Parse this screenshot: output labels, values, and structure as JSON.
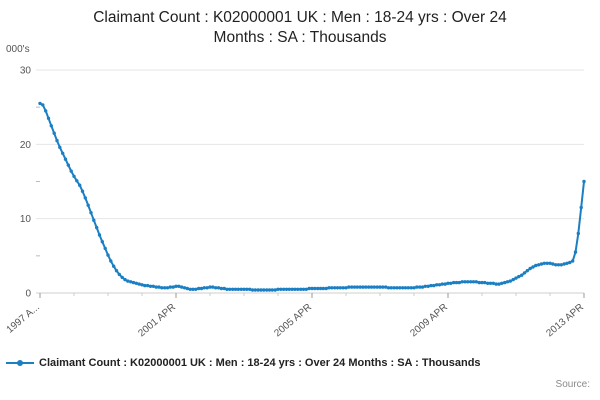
{
  "chart": {
    "title": "Claimant Count : K02000001 UK : Men : 18-24 yrs : Over 24 Months : SA : Thousands",
    "y_unit": "000's",
    "legend_label": "Claimant Count : K02000001 UK : Men : 18-24 yrs : Over 24 Months : SA : Thousands",
    "source_label": "Source:"
  },
  "chart_data": {
    "type": "line",
    "title": "Claimant Count : K02000001 UK : Men : 18-24 yrs : Over 24 Months : SA : Thousands",
    "xlabel": "",
    "ylabel": "000's",
    "ylim": [
      0,
      30
    ],
    "y_ticks": [
      0,
      10,
      20,
      30
    ],
    "y_minor_ticks": [
      5,
      15,
      25
    ],
    "grid": true,
    "legend_position": "bottom",
    "x_start": "1997-04",
    "x_freq": "monthly",
    "x_ticks": [
      {
        "index": 0,
        "label": "1997 A..."
      },
      {
        "index": 48,
        "label": "2001 APR"
      },
      {
        "index": 96,
        "label": "2005 APR"
      },
      {
        "index": 144,
        "label": "2009 APR"
      },
      {
        "index": 192,
        "label": "2013 APR"
      }
    ],
    "series": [
      {
        "name": "Claimant Count : K02000001 UK : Men : 18-24 yrs : Over 24 Months : SA : Thousands",
        "color": "#1b7fc3",
        "values": [
          25.5,
          25.3,
          24.5,
          23.5,
          22.5,
          21.5,
          20.5,
          19.6,
          18.8,
          18.0,
          17.2,
          16.4,
          15.7,
          15.1,
          14.5,
          13.7,
          12.8,
          11.8,
          10.8,
          9.8,
          8.8,
          7.8,
          6.9,
          6.0,
          5.1,
          4.3,
          3.6,
          3.0,
          2.5,
          2.1,
          1.8,
          1.6,
          1.5,
          1.4,
          1.3,
          1.2,
          1.1,
          1.0,
          1.0,
          0.9,
          0.9,
          0.8,
          0.8,
          0.7,
          0.7,
          0.7,
          0.8,
          0.8,
          0.9,
          0.9,
          0.8,
          0.7,
          0.6,
          0.5,
          0.5,
          0.5,
          0.6,
          0.6,
          0.7,
          0.7,
          0.8,
          0.8,
          0.7,
          0.7,
          0.6,
          0.6,
          0.5,
          0.5,
          0.5,
          0.5,
          0.5,
          0.5,
          0.5,
          0.5,
          0.5,
          0.4,
          0.4,
          0.4,
          0.4,
          0.4,
          0.4,
          0.4,
          0.4,
          0.4,
          0.5,
          0.5,
          0.5,
          0.5,
          0.5,
          0.5,
          0.5,
          0.5,
          0.5,
          0.5,
          0.5,
          0.6,
          0.6,
          0.6,
          0.6,
          0.6,
          0.6,
          0.6,
          0.7,
          0.7,
          0.7,
          0.7,
          0.7,
          0.7,
          0.7,
          0.8,
          0.8,
          0.8,
          0.8,
          0.8,
          0.8,
          0.8,
          0.8,
          0.8,
          0.8,
          0.8,
          0.8,
          0.8,
          0.8,
          0.7,
          0.7,
          0.7,
          0.7,
          0.7,
          0.7,
          0.7,
          0.7,
          0.7,
          0.7,
          0.8,
          0.8,
          0.8,
          0.9,
          0.9,
          1.0,
          1.0,
          1.1,
          1.1,
          1.2,
          1.2,
          1.3,
          1.3,
          1.4,
          1.4,
          1.4,
          1.5,
          1.5,
          1.5,
          1.5,
          1.5,
          1.5,
          1.4,
          1.4,
          1.4,
          1.3,
          1.3,
          1.3,
          1.2,
          1.2,
          1.3,
          1.4,
          1.5,
          1.6,
          1.8,
          2.0,
          2.2,
          2.4,
          2.7,
          3.0,
          3.3,
          3.5,
          3.7,
          3.8,
          3.9,
          4.0,
          4.0,
          4.0,
          3.9,
          3.8,
          3.8,
          3.8,
          3.9,
          4.0,
          4.1,
          4.3,
          5.5,
          8.0,
          11.5,
          15.0
        ]
      }
    ]
  }
}
